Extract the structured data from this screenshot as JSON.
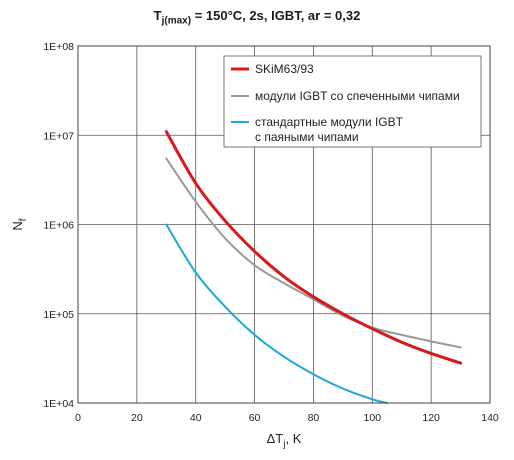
{
  "chart_data": {
    "type": "line",
    "title": {
      "prefix": "T",
      "subscript": "j(max)",
      "suffix": " = 150°C, 2s, IGBT, ar = 0,32"
    },
    "xlabel": {
      "main": "ΔT",
      "sub": "j",
      "rest": ", K"
    },
    "ylabel": {
      "main": "N",
      "sub": "f"
    },
    "xlim": [
      0,
      140
    ],
    "ylim": [
      10000,
      100000000
    ],
    "yscale": "log",
    "grid": true,
    "legend_position": "top-right",
    "x_ticks": [
      "0",
      "20",
      "40",
      "60",
      "80",
      "100",
      "120",
      "140"
    ],
    "y_ticks": [
      "1E+04",
      "1E+05",
      "1E+06",
      "1E+07",
      "1E+08"
    ],
    "series": [
      {
        "name": "SKiM63/93",
        "color": "#d7191c",
        "width": 3,
        "x": [
          30,
          40,
          50,
          60,
          70,
          80,
          90,
          100,
          110,
          120,
          130
        ],
        "y": [
          11000000,
          2900000,
          1100000,
          500000,
          260000,
          155000,
          100000,
          68000,
          48000,
          36000,
          28000
        ]
      },
      {
        "name": "модули IGBT со спеченными чипами",
        "color": "#999999",
        "width": 2,
        "x": [
          30,
          40,
          50,
          60,
          70,
          80,
          90,
          100,
          110,
          120,
          130
        ],
        "y": [
          5500000,
          1800000,
          700000,
          350000,
          220000,
          145000,
          95000,
          70000,
          58000,
          49000,
          42000
        ]
      },
      {
        "name": "стандартные модули IGBT\nс паяными чипами",
        "color": "#1ba9d8",
        "width": 2,
        "x": [
          30,
          40,
          50,
          60,
          70,
          80,
          90,
          100,
          105
        ],
        "y": [
          1000000,
          290000,
          120000,
          58000,
          33000,
          21000,
          14500,
          11000,
          10000
        ]
      }
    ]
  }
}
